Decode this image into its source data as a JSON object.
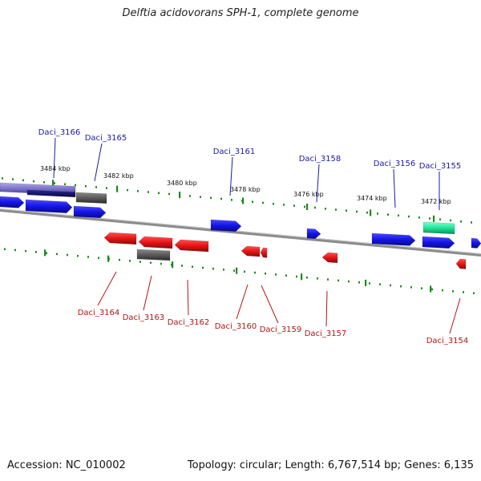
{
  "title": "Delftia acidovorans SPH-1, complete genome",
  "footer": {
    "accession": "Accession: NC_010002",
    "stats": "Topology: circular; Length: 6,767,514 bp; Genes: 6,135"
  },
  "colors": {
    "forward_gene": "#1414e6",
    "reverse_gene": "#e61414",
    "pseudo_gene": "#5a5a5a",
    "rna_gene": "#1ee69a",
    "tick": "#1a8a1a",
    "backbone": "#8c8c8c",
    "forward_label": "#1a1aa8",
    "reverse_label": "#b41414"
  },
  "ticks": [
    {
      "label": "3484 kbp"
    },
    {
      "label": "3482 kbp"
    },
    {
      "label": "3480 kbp"
    },
    {
      "label": "3478 kbp"
    },
    {
      "label": "3476 kbp"
    },
    {
      "label": "3474 kbp"
    },
    {
      "label": "3472 kbp"
    }
  ],
  "genes": [
    {
      "name": "Daci_3166",
      "strand": "forward"
    },
    {
      "name": "Daci_3165",
      "strand": "forward"
    },
    {
      "name": "Daci_3161",
      "strand": "forward"
    },
    {
      "name": "Daci_3158",
      "strand": "forward"
    },
    {
      "name": "Daci_3156",
      "strand": "forward"
    },
    {
      "name": "Daci_3155",
      "strand": "forward"
    },
    {
      "name": "Daci_3164",
      "strand": "reverse"
    },
    {
      "name": "Daci_3163",
      "strand": "reverse"
    },
    {
      "name": "Daci_3162",
      "strand": "reverse"
    },
    {
      "name": "Daci_3160",
      "strand": "reverse"
    },
    {
      "name": "Daci_3159",
      "strand": "reverse"
    },
    {
      "name": "Daci_3157",
      "strand": "reverse"
    },
    {
      "name": "Daci_3154",
      "strand": "reverse"
    }
  ]
}
